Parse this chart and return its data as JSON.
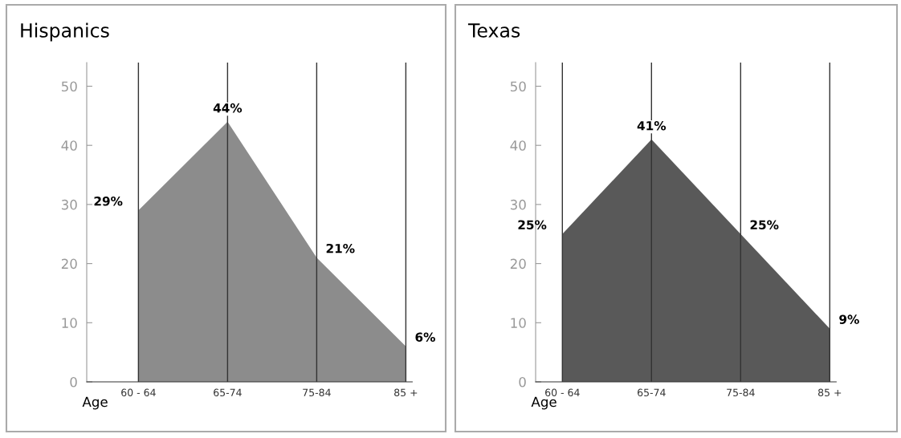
{
  "chart_data": [
    {
      "type": "area",
      "title": "Hispanics",
      "xlabel": "Age",
      "categories": [
        "60 - 64",
        "65-74",
        "75-84",
        "85 +"
      ],
      "series": [
        {
          "color": "#8c8c8c",
          "values": [
            29,
            44,
            21,
            6
          ]
        }
      ],
      "ylim": [
        0,
        54
      ],
      "yticks": [
        0,
        10,
        20,
        30,
        40,
        50
      ],
      "grid": "x",
      "value_labels": [
        "29%",
        "44%",
        "21%",
        "6%"
      ]
    },
    {
      "type": "area",
      "title": "Texas",
      "xlabel": "Age",
      "categories": [
        "60 - 64",
        "65-74",
        "75-84",
        "85 +"
      ],
      "series": [
        {
          "color": "#595959",
          "values": [
            25,
            41,
            25,
            9
          ]
        }
      ],
      "ylim": [
        0,
        54
      ],
      "yticks": [
        0,
        10,
        20,
        30,
        40,
        50
      ],
      "grid": "x",
      "value_labels": [
        "25%",
        "41%",
        "25%",
        "9%"
      ]
    }
  ]
}
